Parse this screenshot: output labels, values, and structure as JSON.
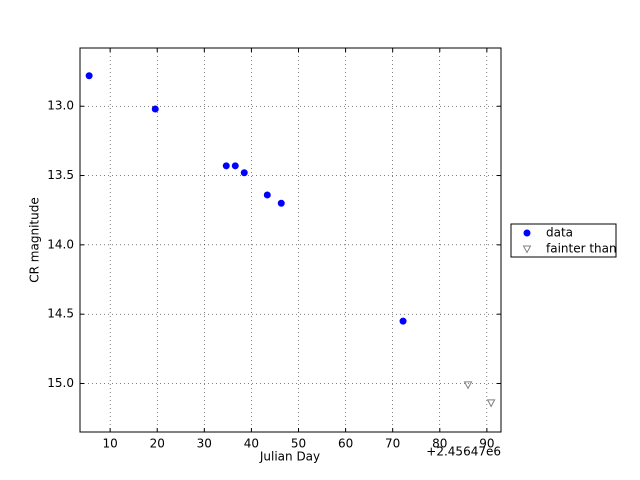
{
  "chart_data": {
    "type": "scatter",
    "xlabel": "Julian Day",
    "ylabel": "CR magnitude",
    "x_offset_label": "+2.45647e6",
    "xlim": [
      3.6,
      93.0
    ],
    "xticks": [
      10,
      20,
      30,
      40,
      50,
      60,
      70,
      80,
      90
    ],
    "ylim": [
      12.58,
      15.35
    ],
    "y_inverted": true,
    "yticks": [
      {
        "value": 13,
        "label": "13.0"
      },
      {
        "value": 13.5,
        "label": "13.5"
      },
      {
        "value": 14,
        "label": "14.0"
      },
      {
        "value": 14.5,
        "label": "14.5"
      },
      {
        "value": 15,
        "label": "15.0"
      }
    ],
    "grid": true,
    "legend": "outside-right",
    "series": [
      {
        "name": "data",
        "color": "#0000ff",
        "marker": "circle",
        "x": [
          5.54,
          19.58,
          34.66,
          36.57,
          38.48,
          43.37,
          46.34,
          72.2
        ],
        "values": [
          12.78,
          13.02,
          13.43,
          13.43,
          13.48,
          13.64,
          13.7,
          14.55
        ]
      },
      {
        "name": "fainter than",
        "color": "#808080",
        "marker": "triangle-down",
        "x": [
          86.0,
          90.9
        ],
        "values": [
          15.01,
          15.14
        ]
      }
    ]
  }
}
